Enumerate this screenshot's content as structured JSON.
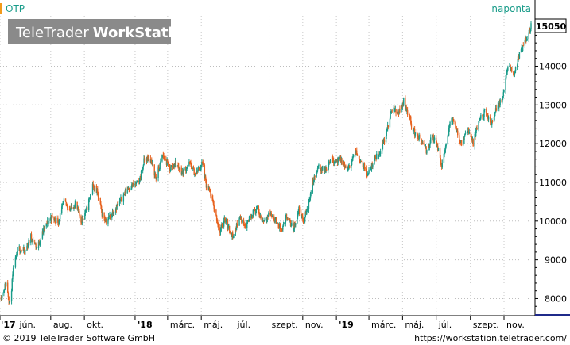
{
  "instrument": "OTP",
  "interval_label": "naponta",
  "watermark": {
    "brand": "TeleTrader",
    "product": "WorkStation"
  },
  "last_price_label": "15050",
  "footer": {
    "copyright": "© 2019 TeleTrader Software GmbH",
    "url": "https://workstation.teletrader.com/"
  },
  "colors": {
    "up": "#1a9c8a",
    "down": "#e8621e",
    "title": "#1a9c8a",
    "axis": "#000000"
  },
  "chart_data": {
    "type": "candlestick",
    "title": "OTP",
    "ylim": [
      7600,
      15300
    ],
    "y_ticks": [
      8000,
      9000,
      10000,
      11000,
      12000,
      13000,
      14000
    ],
    "y_tick_labels": [
      "8000",
      "9000",
      "10000",
      "11000",
      "12000",
      "13000",
      "14000"
    ],
    "x_range": [
      "2017-05-01",
      "2019-12-20"
    ],
    "x_ticks": [
      {
        "date": "2017-05-01",
        "label": "'17",
        "bold": true
      },
      {
        "date": "2017-06-01",
        "label": "jún.",
        "bold": false
      },
      {
        "date": "2017-08-01",
        "label": "aug.",
        "bold": false
      },
      {
        "date": "2017-10-01",
        "label": "okt.",
        "bold": false
      },
      {
        "date": "2018-01-01",
        "label": "'18",
        "bold": true
      },
      {
        "date": "2018-03-01",
        "label": "márc.",
        "bold": false
      },
      {
        "date": "2018-05-01",
        "label": "máj.",
        "bold": false
      },
      {
        "date": "2018-07-01",
        "label": "júl.",
        "bold": false
      },
      {
        "date": "2018-09-01",
        "label": "szept.",
        "bold": false
      },
      {
        "date": "2018-11-01",
        "label": "nov.",
        "bold": false
      },
      {
        "date": "2019-01-01",
        "label": "'19",
        "bold": true
      },
      {
        "date": "2019-03-01",
        "label": "márc.",
        "bold": false
      },
      {
        "date": "2019-05-01",
        "label": "máj.",
        "bold": false
      },
      {
        "date": "2019-07-01",
        "label": "júl.",
        "bold": false
      },
      {
        "date": "2019-09-01",
        "label": "szept.",
        "bold": false
      },
      {
        "date": "2019-11-01",
        "label": "nov.",
        "bold": false
      }
    ],
    "close_path": [
      [
        "2017-05-03",
        8050
      ],
      [
        "2017-05-12",
        8400
      ],
      [
        "2017-05-19",
        7850
      ],
      [
        "2017-05-26",
        8850
      ],
      [
        "2017-06-05",
        9300
      ],
      [
        "2017-06-15",
        9200
      ],
      [
        "2017-06-26",
        9600
      ],
      [
        "2017-07-07",
        9300
      ],
      [
        "2017-07-20",
        9800
      ],
      [
        "2017-08-01",
        10100
      ],
      [
        "2017-08-15",
        10000
      ],
      [
        "2017-08-25",
        10500
      ],
      [
        "2017-09-05",
        10300
      ],
      [
        "2017-09-15",
        10450
      ],
      [
        "2017-09-25",
        10000
      ],
      [
        "2017-10-05",
        10300
      ],
      [
        "2017-10-16",
        10900
      ],
      [
        "2017-10-24",
        10750
      ],
      [
        "2017-11-02",
        10200
      ],
      [
        "2017-11-10",
        10000
      ],
      [
        "2017-11-22",
        10250
      ],
      [
        "2017-12-05",
        10500
      ],
      [
        "2017-12-18",
        10850
      ],
      [
        "2018-01-08",
        11000
      ],
      [
        "2018-01-18",
        11600
      ],
      [
        "2018-01-29",
        11600
      ],
      [
        "2018-02-08",
        11100
      ],
      [
        "2018-02-20",
        11700
      ],
      [
        "2018-03-05",
        11350
      ],
      [
        "2018-03-15",
        11500
      ],
      [
        "2018-03-28",
        11250
      ],
      [
        "2018-04-10",
        11500
      ],
      [
        "2018-04-20",
        11200
      ],
      [
        "2018-05-03",
        11500
      ],
      [
        "2018-05-10",
        10900
      ],
      [
        "2018-05-18",
        10700
      ],
      [
        "2018-05-25",
        10300
      ],
      [
        "2018-06-04",
        9700
      ],
      [
        "2018-06-12",
        10100
      ],
      [
        "2018-06-20",
        9800
      ],
      [
        "2018-06-28",
        9600
      ],
      [
        "2018-07-09",
        10100
      ],
      [
        "2018-07-20",
        9900
      ],
      [
        "2018-08-01",
        10200
      ],
      [
        "2018-08-10",
        10300
      ],
      [
        "2018-08-20",
        10000
      ],
      [
        "2018-09-03",
        10200
      ],
      [
        "2018-09-13",
        10000
      ],
      [
        "2018-09-24",
        9750
      ],
      [
        "2018-10-03",
        10100
      ],
      [
        "2018-10-15",
        9800
      ],
      [
        "2018-10-25",
        10300
      ],
      [
        "2018-11-02",
        10000
      ],
      [
        "2018-11-09",
        10300
      ],
      [
        "2018-11-19",
        11000
      ],
      [
        "2018-11-30",
        11400
      ],
      [
        "2018-12-12",
        11300
      ],
      [
        "2018-12-21",
        11600
      ],
      [
        "2019-01-10",
        11550
      ],
      [
        "2019-01-22",
        11300
      ],
      [
        "2019-02-04",
        11800
      ],
      [
        "2019-02-15",
        11550
      ],
      [
        "2019-02-27",
        11200
      ],
      [
        "2019-03-11",
        11600
      ],
      [
        "2019-03-22",
        11800
      ],
      [
        "2019-04-02",
        12300
      ],
      [
        "2019-04-12",
        12900
      ],
      [
        "2019-04-24",
        12800
      ],
      [
        "2019-05-03",
        13100
      ],
      [
        "2019-05-13",
        12700
      ],
      [
        "2019-05-22",
        12300
      ],
      [
        "2019-06-03",
        12100
      ],
      [
        "2019-06-13",
        11800
      ],
      [
        "2019-06-24",
        12200
      ],
      [
        "2019-07-04",
        11900
      ],
      [
        "2019-07-10",
        11400
      ],
      [
        "2019-07-19",
        12000
      ],
      [
        "2019-07-29",
        12700
      ],
      [
        "2019-08-07",
        12300
      ],
      [
        "2019-08-16",
        12000
      ],
      [
        "2019-08-27",
        12400
      ],
      [
        "2019-09-06",
        12000
      ],
      [
        "2019-09-17",
        12600
      ],
      [
        "2019-09-27",
        12800
      ],
      [
        "2019-10-08",
        12500
      ],
      [
        "2019-10-18",
        12900
      ],
      [
        "2019-10-30",
        13200
      ],
      [
        "2019-11-08",
        14000
      ],
      [
        "2019-11-19",
        13800
      ],
      [
        "2019-11-29",
        14300
      ],
      [
        "2019-12-09",
        14600
      ],
      [
        "2019-12-16",
        14900
      ],
      [
        "2019-12-20",
        15050
      ]
    ]
  }
}
